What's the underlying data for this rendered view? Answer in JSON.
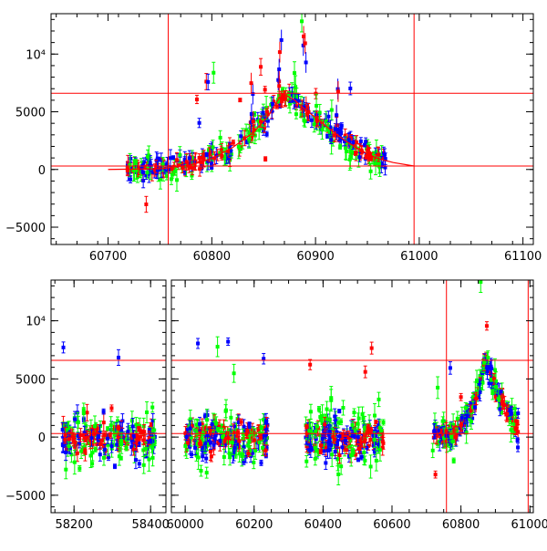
{
  "chart_data": [
    {
      "type": "scatter",
      "panel": "top",
      "xlim": [
        60645,
        61110
      ],
      "ylim": [
        -6500,
        13500
      ],
      "xticks": [
        {
          "value": 60700,
          "label": "60700"
        },
        {
          "value": 60800,
          "label": "60800"
        },
        {
          "value": 60900,
          "label": "60900"
        },
        {
          "value": 61000,
          "label": "61000"
        },
        {
          "value": 61100,
          "label": "61100"
        }
      ],
      "yticks": [
        {
          "value": -5000,
          "label": "−5000"
        },
        {
          "value": 0,
          "label": "0"
        },
        {
          "value": 5000,
          "label": "5000"
        },
        {
          "value": 10000,
          "label": "10⁴"
        }
      ],
      "vlines": [
        60758,
        60995
      ],
      "hlines": [
        300,
        6600
      ],
      "series_colors": {
        "green": "#00ff00",
        "blue": "#0000ff",
        "red": "#ff0000"
      },
      "model_curve": [
        [
          60700,
          0
        ],
        [
          60750,
          60
        ],
        [
          60780,
          380
        ],
        [
          60800,
          950
        ],
        [
          60820,
          1900
        ],
        [
          60840,
          3200
        ],
        [
          60855,
          4700
        ],
        [
          60865,
          6200
        ],
        [
          60870,
          6500
        ],
        [
          60880,
          6000
        ],
        [
          60890,
          5200
        ],
        [
          60900,
          4500
        ],
        [
          60915,
          3400
        ],
        [
          60930,
          2400
        ],
        [
          60945,
          1600
        ],
        [
          60960,
          950
        ],
        [
          60975,
          600
        ],
        [
          60995,
          300
        ]
      ],
      "segments": [
        [
          60718,
          60968
        ]
      ],
      "spikes": [
        [
          60866,
          13000
        ],
        [
          60890,
          12000
        ],
        [
          60922,
          8000
        ],
        [
          60838,
          11000
        ]
      ]
    },
    {
      "type": "scatter",
      "panel": "bottom",
      "ylim": [
        -6500,
        13500
      ],
      "breaks": [
        {
          "xlim": [
            58140,
            58440
          ],
          "xticks": [
            {
              "value": 58200,
              "label": "58200"
            },
            {
              "value": 58400,
              "label": "58400"
            }
          ]
        },
        {
          "xlim": [
            59960,
            61010
          ],
          "xticks": [
            {
              "value": 60000,
              "label": "60000"
            },
            {
              "value": 60200,
              "label": "60200"
            },
            {
              "value": 60400,
              "label": "60400"
            },
            {
              "value": 60600,
              "label": "60600"
            },
            {
              "value": 60800,
              "label": "60800"
            },
            {
              "value": 61000,
              "label": "61000"
            }
          ]
        }
      ],
      "yticks": [
        {
          "value": -5000,
          "label": "−5000"
        },
        {
          "value": 0,
          "label": "0"
        },
        {
          "value": 5000,
          "label": "5000"
        },
        {
          "value": 10000,
          "label": "10⁴"
        }
      ],
      "vlines": [
        60758,
        60995
      ],
      "hlines": [
        300,
        6600
      ],
      "series_colors": {
        "green": "#00ff00",
        "blue": "#0000ff",
        "red": "#ff0000"
      },
      "segments": [
        [
          58170,
          58415
        ],
        [
          60000,
          60240
        ],
        [
          60350,
          60580
        ],
        [
          60718,
          60968
        ]
      ]
    }
  ]
}
